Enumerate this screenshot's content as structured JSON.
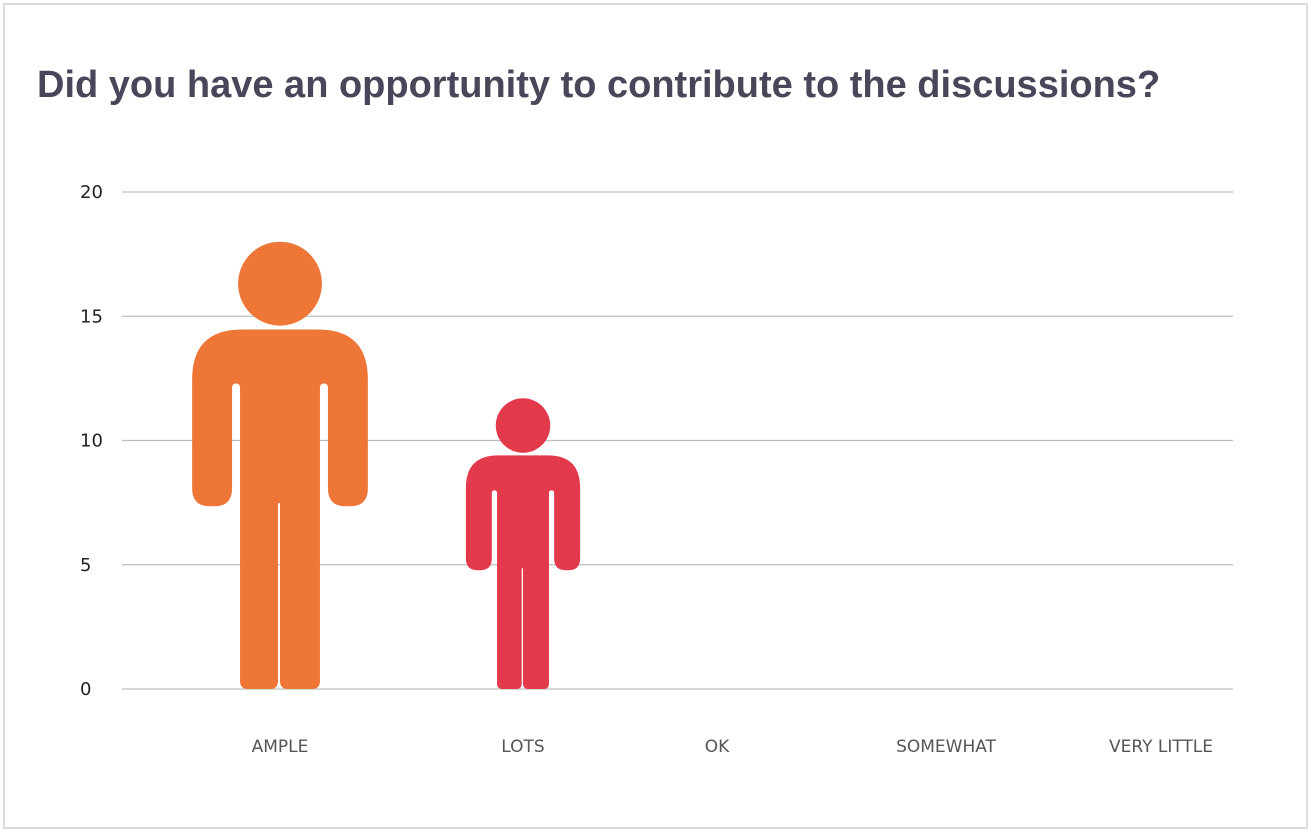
{
  "chart_data": {
    "type": "bar",
    "style": "pictograph-person",
    "title": "Did you have an opportunity to contribute to the discussions?",
    "categories": [
      "AMPLE",
      "LOTS",
      "OK",
      "SOMEWHAT",
      "VERY LITTLE"
    ],
    "values": [
      18,
      11.7,
      0,
      0,
      0
    ],
    "colors": [
      "#ee7637",
      "#e23a4b",
      "#ee7637",
      "#ee7637",
      "#ee7637"
    ],
    "ylim": [
      0,
      20
    ],
    "yticks": [
      0,
      5,
      10,
      15,
      20
    ],
    "grid": true,
    "xlabel": "",
    "ylabel": ""
  }
}
